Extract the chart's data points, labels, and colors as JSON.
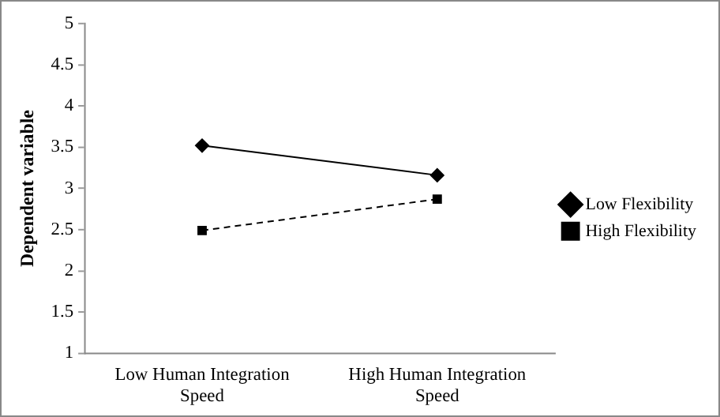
{
  "chart_data": {
    "type": "line",
    "ylabel": "Dependent variable",
    "categories": [
      "Low Human Integration Speed",
      "High Human Integration Speed"
    ],
    "series": [
      {
        "name": "Low Flexibility",
        "color": "#000000",
        "values": [
          3.52,
          3.16
        ],
        "marker": "diamond",
        "line_style": "solid"
      },
      {
        "name": "High Flexibility",
        "color": "#000000",
        "values": [
          2.49,
          2.87
        ],
        "marker": "square",
        "line_style": "dashed"
      }
    ],
    "ylim": [
      1,
      5
    ],
    "yticks": [
      1,
      1.5,
      2,
      2.5,
      3,
      3.5,
      4,
      4.5,
      5
    ],
    "grid": false,
    "legend": "right"
  }
}
